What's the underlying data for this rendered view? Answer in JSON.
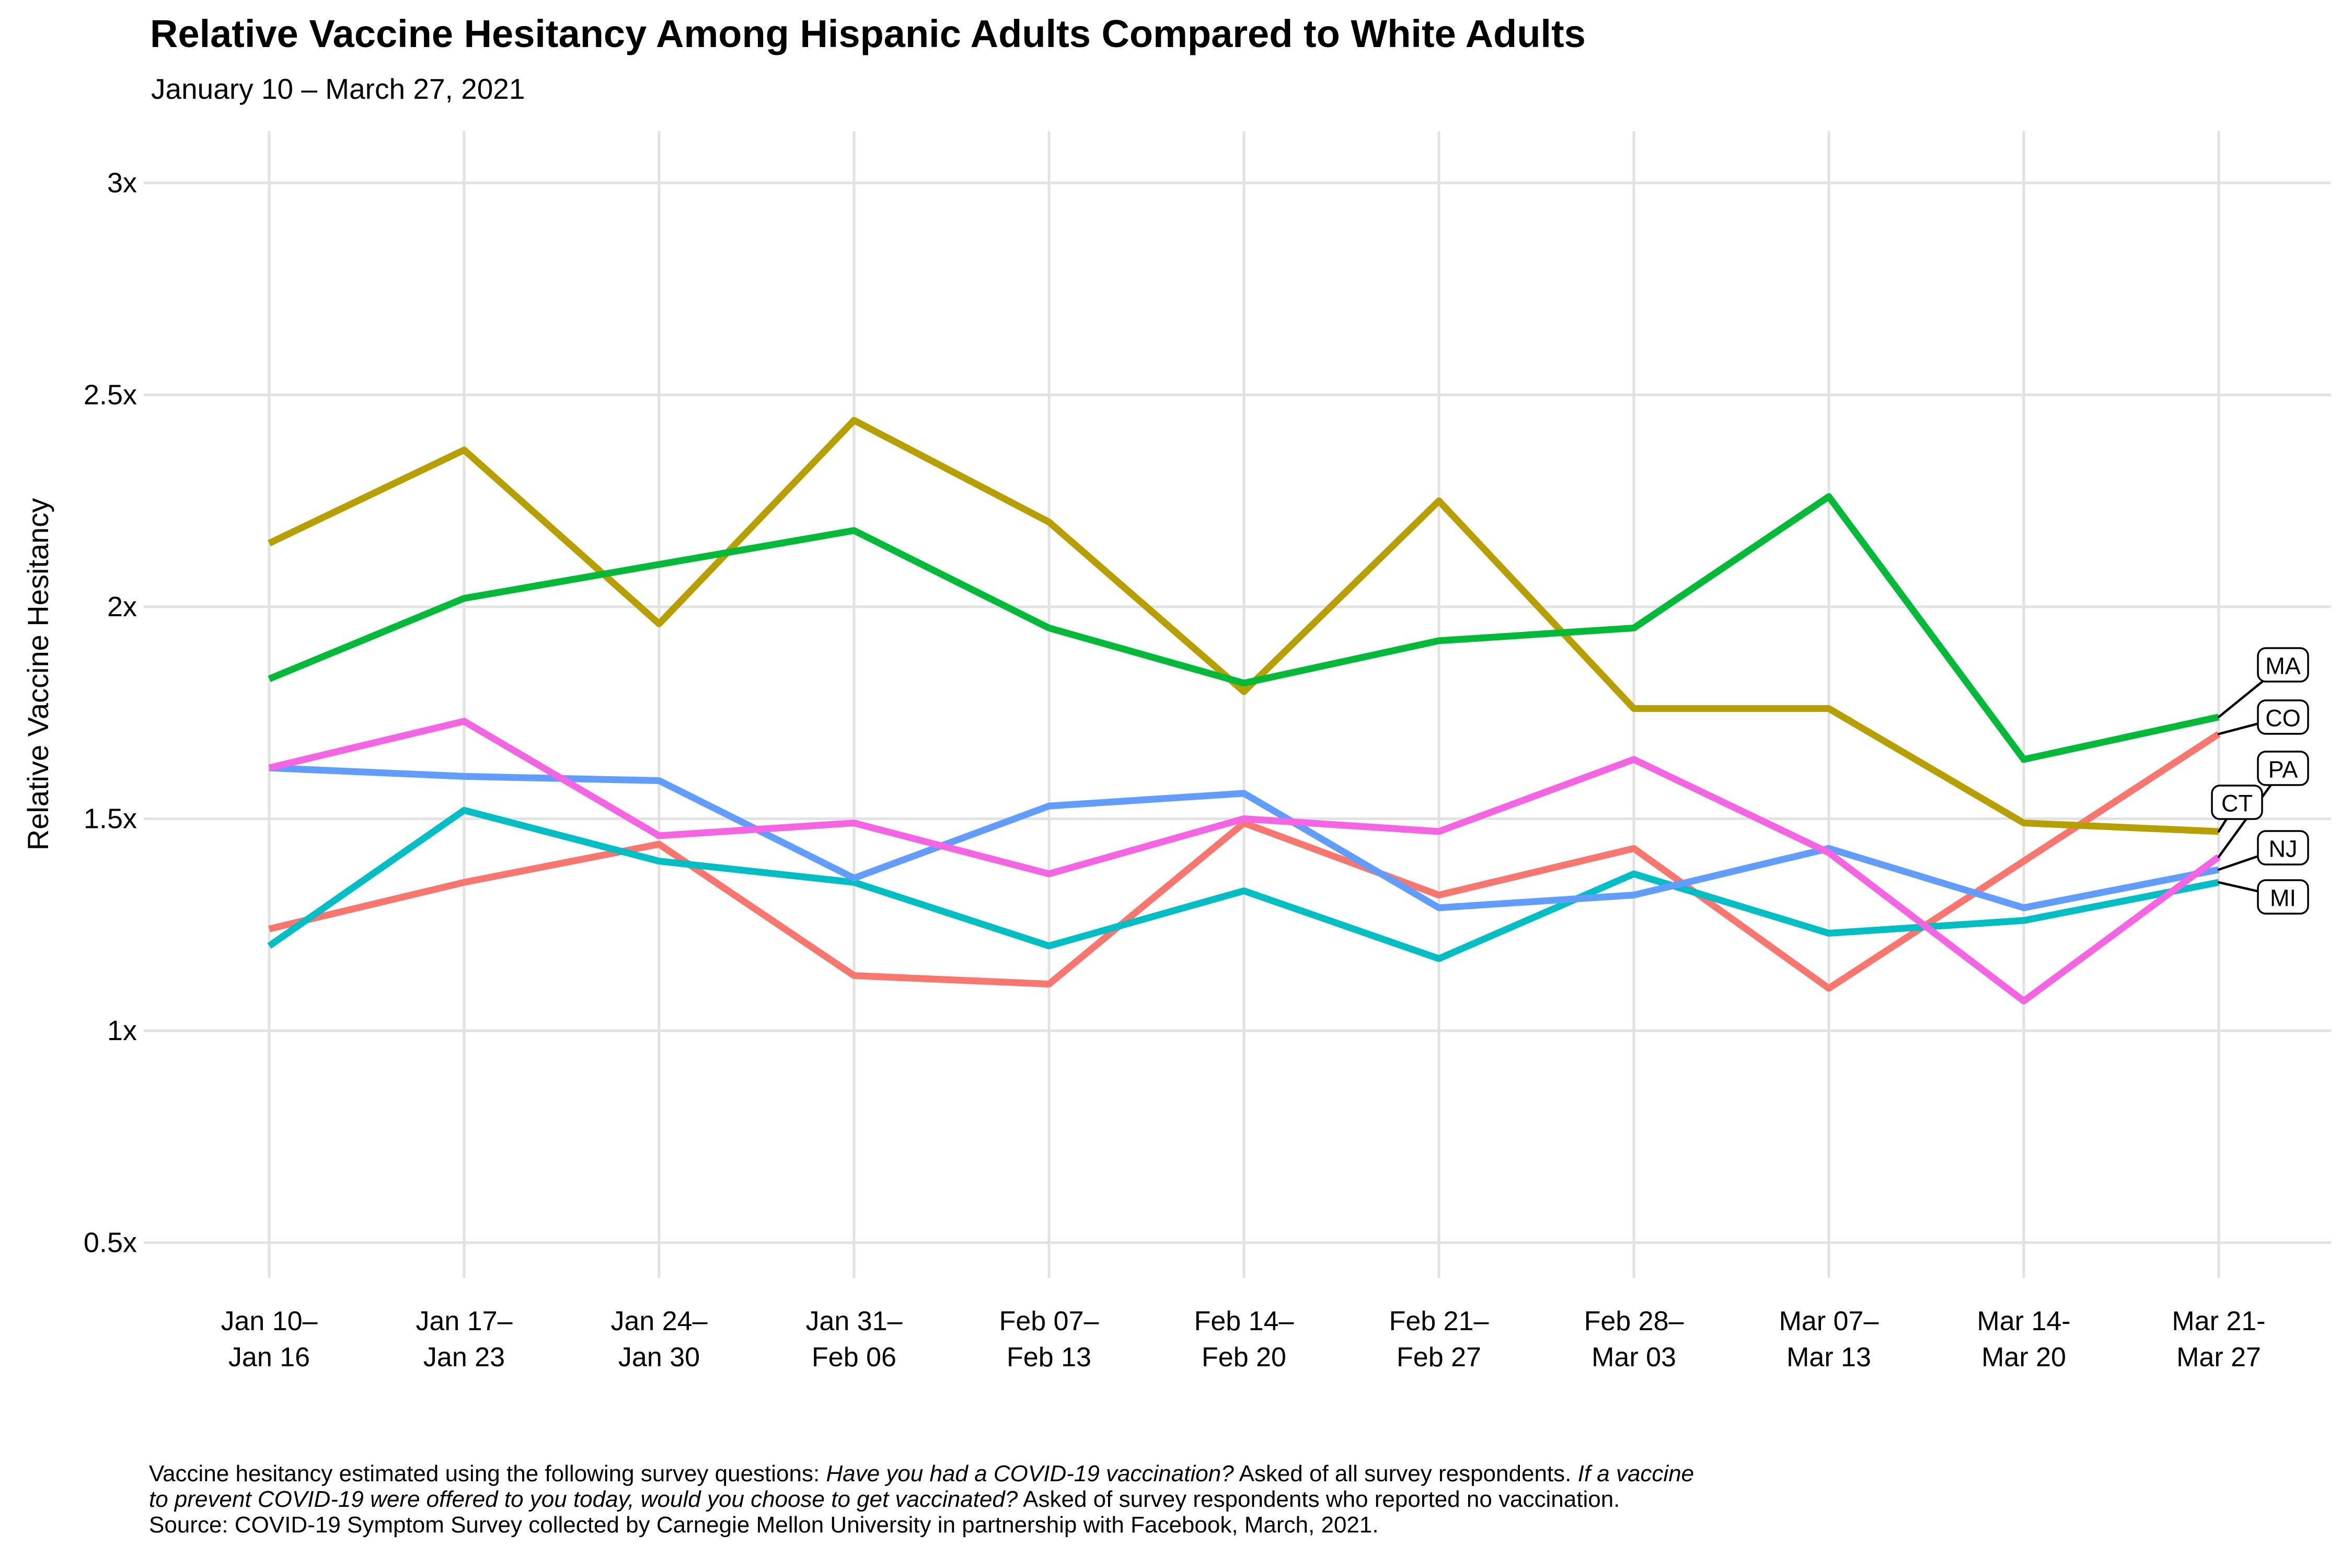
{
  "header": {
    "title": "Relative Vaccine Hesitancy Among Hispanic Adults Compared to White Adults",
    "subtitle": "January 10 – March 27, 2021"
  },
  "footer": {
    "lines": [
      {
        "parts": [
          {
            "text": "Vaccine hesitancy estimated using the following survey questions: ",
            "italic": false
          },
          {
            "text": "Have you had a COVID-19 vaccination?",
            "italic": true
          },
          {
            "text": " Asked of all survey respondents. ",
            "italic": false
          },
          {
            "text": "If a vaccine",
            "italic": true
          }
        ]
      },
      {
        "parts": [
          {
            "text": "to prevent COVID-19 were offered to you today, would you choose to get vaccinated?",
            "italic": true
          },
          {
            "text": " Asked of survey respondents who reported no vaccination.",
            "italic": false
          }
        ]
      },
      {
        "parts": [
          {
            "text": "Source: COVID-19 Symptom Survey collected by Carnegie Mellon University in partnership with Facebook, March, 2021.",
            "italic": false
          }
        ]
      }
    ]
  },
  "chart_data": {
    "type": "line",
    "title": "Relative Vaccine Hesitancy Among Hispanic Adults Compared to White Adults",
    "subtitle": "January 10 – March 27, 2021",
    "xlabel": "",
    "ylabel": "Relative Vaccine Hesitancy",
    "ylim": [
      0.4,
      3.1
    ],
    "grid": true,
    "legend_position": "right-inline-boxed-labels",
    "y_ticks": [
      {
        "label": "3x",
        "value": 3.0
      },
      {
        "label": "2.5x",
        "value": 2.5
      },
      {
        "label": "2x",
        "value": 2.0
      },
      {
        "label": "1.5x",
        "value": 1.5
      },
      {
        "label": "1x",
        "value": 1.0
      },
      {
        "label": "0.5x",
        "value": 0.5
      }
    ],
    "categories": [
      {
        "line1": "Jan 10–",
        "line2": "Jan 16"
      },
      {
        "line1": "Jan 17–",
        "line2": "Jan 23"
      },
      {
        "line1": "Jan 24–",
        "line2": "Jan 30"
      },
      {
        "line1": "Jan 31–",
        "line2": "Feb 06"
      },
      {
        "line1": "Feb 07–",
        "line2": "Feb 13"
      },
      {
        "line1": "Feb 14–",
        "line2": "Feb 20"
      },
      {
        "line1": "Feb 21–",
        "line2": "Feb 27"
      },
      {
        "line1": "Feb 28–",
        "line2": "Mar 03"
      },
      {
        "line1": "Mar 07–",
        "line2": "Mar 13"
      },
      {
        "line1": "Mar 14-",
        "line2": "Mar 20"
      },
      {
        "line1": "Mar 21-",
        "line2": "Mar 27"
      }
    ],
    "series": [
      {
        "name": "CO",
        "color": "#F8766D",
        "values": [
          1.24,
          1.35,
          1.44,
          1.13,
          1.11,
          1.49,
          1.32,
          1.43,
          1.1,
          1.4,
          1.7
        ]
      },
      {
        "name": "CT",
        "color": "#B79F00",
        "values": [
          2.15,
          2.37,
          1.96,
          2.44,
          2.2,
          1.8,
          2.25,
          1.76,
          1.76,
          1.49,
          1.47
        ]
      },
      {
        "name": "MA",
        "color": "#00BA38",
        "values": [
          1.83,
          2.02,
          2.1,
          2.18,
          1.95,
          1.82,
          1.92,
          1.95,
          2.26,
          1.64,
          1.74
        ]
      },
      {
        "name": "MI",
        "color": "#00BFC4",
        "values": [
          1.2,
          1.52,
          1.4,
          1.35,
          1.2,
          1.33,
          1.17,
          1.37,
          1.23,
          1.26,
          1.35
        ]
      },
      {
        "name": "NJ",
        "color": "#619CFF",
        "values": [
          1.62,
          1.6,
          1.59,
          1.36,
          1.53,
          1.56,
          1.29,
          1.32,
          1.43,
          1.29,
          1.38
        ]
      },
      {
        "name": "PA",
        "color": "#F564E3",
        "values": [
          1.62,
          1.73,
          1.46,
          1.49,
          1.37,
          1.5,
          1.47,
          1.64,
          1.42,
          1.07,
          1.41
        ]
      }
    ],
    "end_labels": [
      "MA",
      "CO",
      "PA",
      "CT",
      "NJ",
      "MI"
    ]
  },
  "style": {
    "grid_color": "#E2E2E2",
    "text_color": "#000000",
    "background": "#FFFFFF"
  }
}
